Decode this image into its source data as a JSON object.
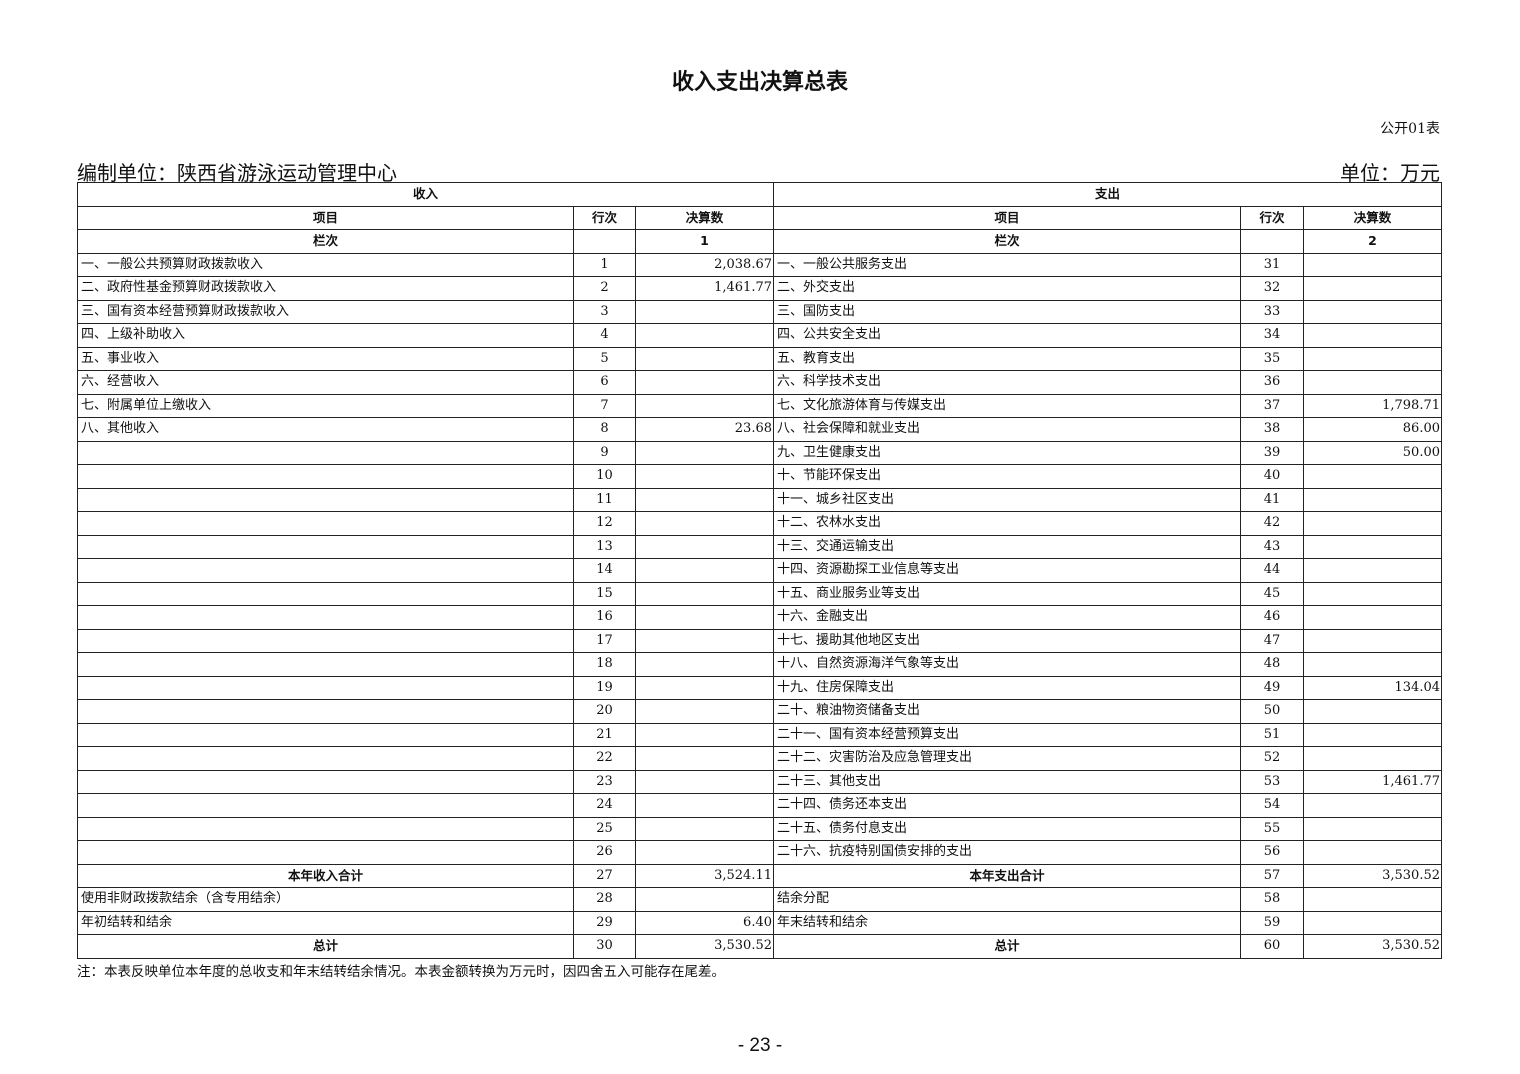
{
  "title": "收入支出决算总表",
  "table_code": "公开01表",
  "org_label": "编制单位：陕西省游泳运动管理中心",
  "unit_label": "单位：万元",
  "headers": {
    "income": "收入",
    "expense": "支出",
    "item": "项目",
    "row_no": "行次",
    "amount": "决算数",
    "column_label": "栏次",
    "income_col": "1",
    "expense_col": "2"
  },
  "rows": [
    {
      "in_item": "一、一般公共预算财政拨款收入",
      "in_no": "1",
      "in_amt": "2,038.67",
      "ex_item": "一、一般公共服务支出",
      "ex_no": "31",
      "ex_amt": ""
    },
    {
      "in_item": "二、政府性基金预算财政拨款收入",
      "in_no": "2",
      "in_amt": "1,461.77",
      "ex_item": "二、外交支出",
      "ex_no": "32",
      "ex_amt": ""
    },
    {
      "in_item": "三、国有资本经营预算财政拨款收入",
      "in_no": "3",
      "in_amt": "",
      "ex_item": "三、国防支出",
      "ex_no": "33",
      "ex_amt": ""
    },
    {
      "in_item": "四、上级补助收入",
      "in_no": "4",
      "in_amt": "",
      "ex_item": "四、公共安全支出",
      "ex_no": "34",
      "ex_amt": ""
    },
    {
      "in_item": "五、事业收入",
      "in_no": "5",
      "in_amt": "",
      "ex_item": "五、教育支出",
      "ex_no": "35",
      "ex_amt": ""
    },
    {
      "in_item": "六、经营收入",
      "in_no": "6",
      "in_amt": "",
      "ex_item": "六、科学技术支出",
      "ex_no": "36",
      "ex_amt": ""
    },
    {
      "in_item": "七、附属单位上缴收入",
      "in_no": "7",
      "in_amt": "",
      "ex_item": "七、文化旅游体育与传媒支出",
      "ex_no": "37",
      "ex_amt": "1,798.71"
    },
    {
      "in_item": "八、其他收入",
      "in_no": "8",
      "in_amt": "23.68",
      "ex_item": "八、社会保障和就业支出",
      "ex_no": "38",
      "ex_amt": "86.00"
    },
    {
      "in_item": "",
      "in_no": "9",
      "in_amt": "",
      "ex_item": "九、卫生健康支出",
      "ex_no": "39",
      "ex_amt": "50.00"
    },
    {
      "in_item": "",
      "in_no": "10",
      "in_amt": "",
      "ex_item": "十、节能环保支出",
      "ex_no": "40",
      "ex_amt": ""
    },
    {
      "in_item": "",
      "in_no": "11",
      "in_amt": "",
      "ex_item": "十一、城乡社区支出",
      "ex_no": "41",
      "ex_amt": ""
    },
    {
      "in_item": "",
      "in_no": "12",
      "in_amt": "",
      "ex_item": "十二、农林水支出",
      "ex_no": "42",
      "ex_amt": ""
    },
    {
      "in_item": "",
      "in_no": "13",
      "in_amt": "",
      "ex_item": "十三、交通运输支出",
      "ex_no": "43",
      "ex_amt": ""
    },
    {
      "in_item": "",
      "in_no": "14",
      "in_amt": "",
      "ex_item": "十四、资源勘探工业信息等支出",
      "ex_no": "44",
      "ex_amt": ""
    },
    {
      "in_item": "",
      "in_no": "15",
      "in_amt": "",
      "ex_item": "十五、商业服务业等支出",
      "ex_no": "45",
      "ex_amt": ""
    },
    {
      "in_item": "",
      "in_no": "16",
      "in_amt": "",
      "ex_item": "十六、金融支出",
      "ex_no": "46",
      "ex_amt": ""
    },
    {
      "in_item": "",
      "in_no": "17",
      "in_amt": "",
      "ex_item": "十七、援助其他地区支出",
      "ex_no": "47",
      "ex_amt": ""
    },
    {
      "in_item": "",
      "in_no": "18",
      "in_amt": "",
      "ex_item": "十八、自然资源海洋气象等支出",
      "ex_no": "48",
      "ex_amt": ""
    },
    {
      "in_item": "",
      "in_no": "19",
      "in_amt": "",
      "ex_item": "十九、住房保障支出",
      "ex_no": "49",
      "ex_amt": "134.04"
    },
    {
      "in_item": "",
      "in_no": "20",
      "in_amt": "",
      "ex_item": "二十、粮油物资储备支出",
      "ex_no": "50",
      "ex_amt": ""
    },
    {
      "in_item": "",
      "in_no": "21",
      "in_amt": "",
      "ex_item": "二十一、国有资本经营预算支出",
      "ex_no": "51",
      "ex_amt": ""
    },
    {
      "in_item": "",
      "in_no": "22",
      "in_amt": "",
      "ex_item": "二十二、灾害防治及应急管理支出",
      "ex_no": "52",
      "ex_amt": ""
    },
    {
      "in_item": "",
      "in_no": "23",
      "in_amt": "",
      "ex_item": "二十三、其他支出",
      "ex_no": "53",
      "ex_amt": "1,461.77"
    },
    {
      "in_item": "",
      "in_no": "24",
      "in_amt": "",
      "ex_item": "二十四、债务还本支出",
      "ex_no": "54",
      "ex_amt": ""
    },
    {
      "in_item": "",
      "in_no": "25",
      "in_amt": "",
      "ex_item": "二十五、债务付息支出",
      "ex_no": "55",
      "ex_amt": ""
    },
    {
      "in_item": "",
      "in_no": "26",
      "in_amt": "",
      "ex_item": "二十六、抗疫特别国债安排的支出",
      "ex_no": "56",
      "ex_amt": ""
    },
    {
      "in_item": "本年收入合计",
      "in_no": "27",
      "in_amt": "3,524.11",
      "ex_item": "本年支出合计",
      "ex_no": "57",
      "ex_amt": "3,530.52",
      "bold": true
    },
    {
      "in_item": "使用非财政拨款结余（含专用结余）",
      "in_no": "28",
      "in_amt": "",
      "ex_item": "结余分配",
      "ex_no": "58",
      "ex_amt": ""
    },
    {
      "in_item": "年初结转和结余",
      "in_no": "29",
      "in_amt": "6.40",
      "ex_item": "年末结转和结余",
      "ex_no": "59",
      "ex_amt": ""
    },
    {
      "in_item": "总计",
      "in_no": "30",
      "in_amt": "3,530.52",
      "ex_item": "总计",
      "ex_no": "60",
      "ex_amt": "3,530.52",
      "bold": true
    }
  ],
  "note": "注：本表反映单位本年度的总收支和年末结转结余情况。本表金额转换为万元时，因四舍五入可能存在尾差。",
  "page_number": "- 23 -"
}
